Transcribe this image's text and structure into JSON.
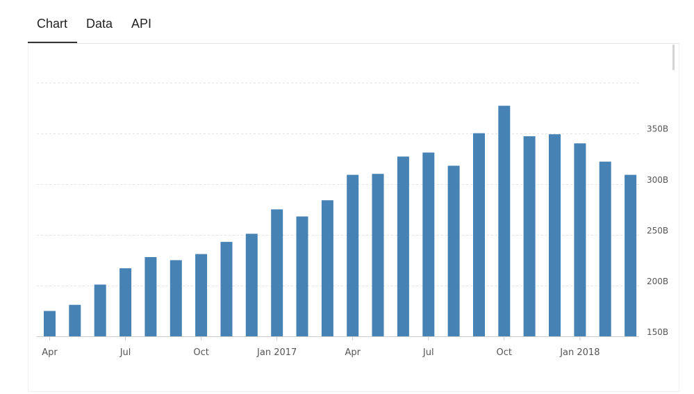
{
  "tabs": [
    {
      "label": "Chart",
      "active": true
    },
    {
      "label": "Data",
      "active": false
    },
    {
      "label": "API",
      "active": false
    }
  ],
  "chart_data": {
    "type": "bar",
    "categories": [
      "Apr 2016",
      "May 2016",
      "Jun 2016",
      "Jul 2016",
      "Aug 2016",
      "Sep 2016",
      "Oct 2016",
      "Nov 2016",
      "Dec 2016",
      "Jan 2017",
      "Feb 2017",
      "Mar 2017",
      "Apr 2017",
      "May 2017",
      "Jun 2017",
      "Jul 2017",
      "Aug 2017",
      "Sep 2017",
      "Oct 2017",
      "Nov 2017",
      "Dec 2017",
      "Jan 2018",
      "Feb 2018",
      "Mar 2018"
    ],
    "values": [
      175,
      181,
      201,
      217,
      228,
      225,
      231,
      243,
      251,
      275,
      268,
      284,
      309,
      310,
      327,
      331,
      318,
      350,
      377,
      347,
      349,
      340,
      322,
      309
    ],
    "value_unit": "B",
    "ylim": [
      150,
      400
    ],
    "yticks": [
      150,
      200,
      250,
      300,
      350
    ],
    "ytick_labels": [
      "150B",
      "200B",
      "250B",
      "300B",
      "350B"
    ],
    "xtick_labels": [
      {
        "index": 0,
        "label": "Apr"
      },
      {
        "index": 3,
        "label": "Jul"
      },
      {
        "index": 6,
        "label": "Oct"
      },
      {
        "index": 9,
        "label": "Jan 2017"
      },
      {
        "index": 12,
        "label": "Apr"
      },
      {
        "index": 15,
        "label": "Jul"
      },
      {
        "index": 18,
        "label": "Oct"
      },
      {
        "index": 21,
        "label": "Jan 2018"
      }
    ],
    "grid": true,
    "y_axis_side": "right",
    "bar_color": "#4682b4",
    "title": "",
    "xlabel": "",
    "ylabel": ""
  }
}
